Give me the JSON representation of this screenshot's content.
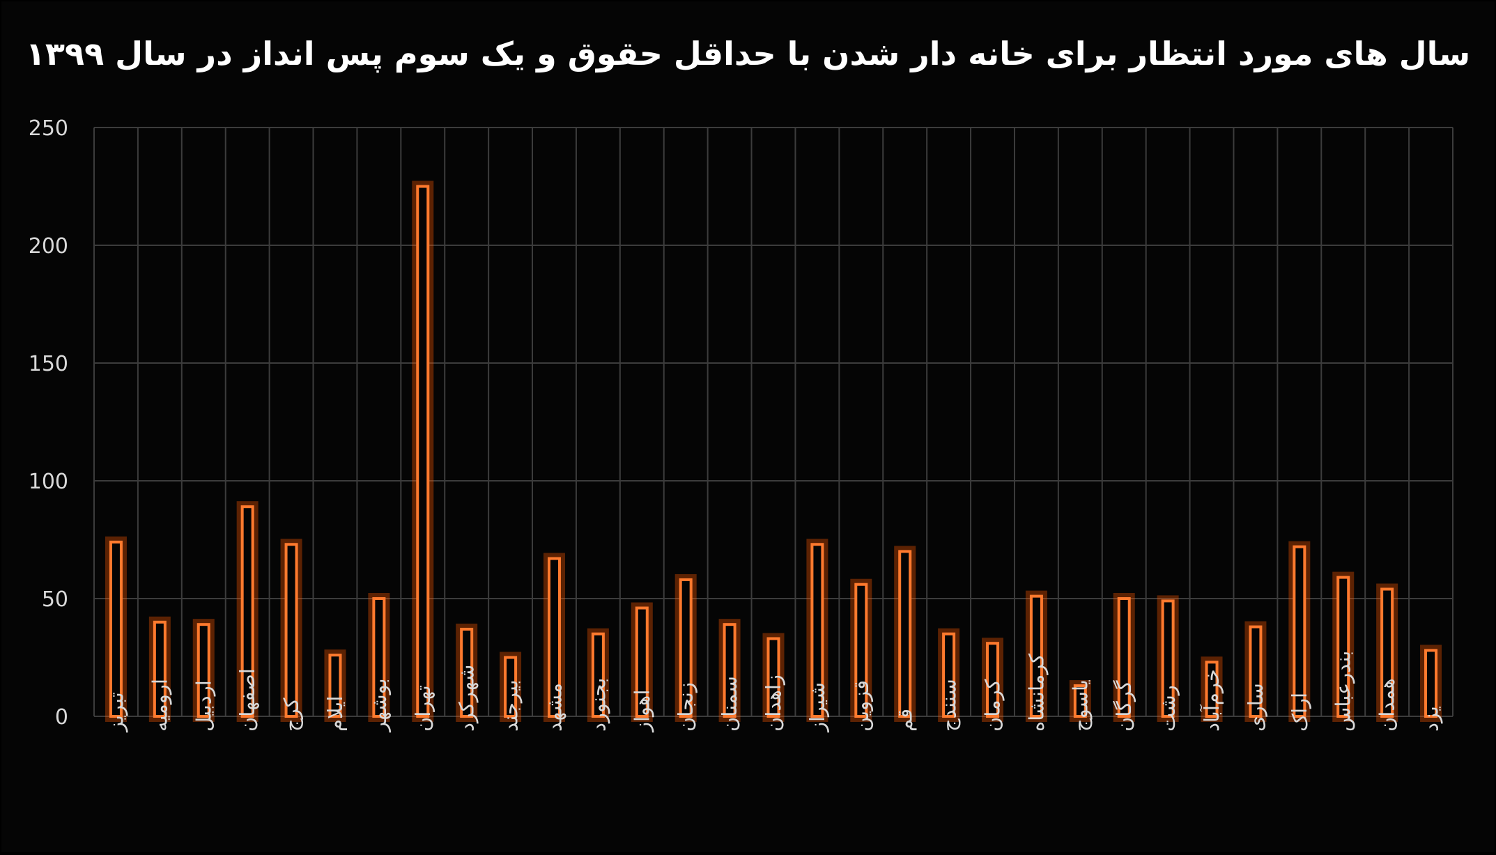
{
  "chart_data": {
    "type": "bar",
    "title": "سال های مورد انتظار برای خانه دار شدن با حداقل حقوق و یک سوم پس انداز در سال ۱۳۹۹",
    "xlabel": "",
    "ylabel": "",
    "ylim": [
      0,
      250
    ],
    "yticks": [
      0,
      50,
      100,
      150,
      200,
      250
    ],
    "grid": true,
    "legend": "none",
    "bar_color": "#ff7a2e",
    "categories": [
      "تبریز",
      "ارومیه",
      "اردبیل",
      "اصفهان",
      "کرج",
      "ایلام",
      "بوشهر",
      "تهران",
      "شهرکرد",
      "بیرجند",
      "مشهد",
      "بجنورد",
      "اهواز",
      "زنجان",
      "سمنان",
      "زاهدان",
      "شیراز",
      "قزوین",
      "قم",
      "سنندج",
      "کرمان",
      "کرمانشاه",
      "یاسوج",
      "گرگان",
      "رشت",
      "خرم‌آباد",
      "ساری",
      "اراک",
      "بندرعباس",
      "همدان",
      "یزد"
    ],
    "values": [
      74,
      40,
      39,
      89,
      73,
      26,
      50,
      225,
      37,
      25,
      67,
      35,
      46,
      58,
      39,
      33,
      73,
      56,
      70,
      35,
      31,
      51,
      13,
      50,
      49,
      23,
      38,
      72,
      59,
      54,
      28
    ]
  }
}
